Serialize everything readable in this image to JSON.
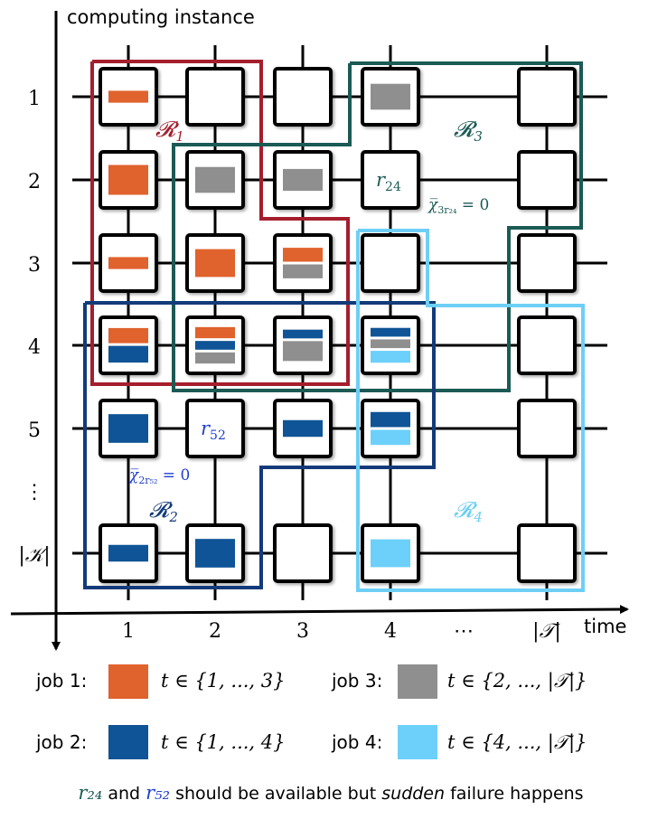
{
  "axes": {
    "y_label": "computing instance",
    "x_label": "time",
    "row_labels": [
      "1",
      "2",
      "3",
      "4",
      "5",
      "⋮",
      "|𝒦|"
    ],
    "col_labels": [
      "1",
      "2",
      "3",
      "4",
      "⋯",
      "|𝒯|"
    ]
  },
  "regions": [
    {
      "label": "𝓡",
      "sub": "1",
      "color": "#a51e2d"
    },
    {
      "label": "𝓡",
      "sub": "2",
      "color": "#133b7a"
    },
    {
      "label": "𝓡",
      "sub": "3",
      "color": "#1b5a55"
    },
    {
      "label": "𝓡",
      "sub": "4",
      "color": "#6ecff6"
    }
  ],
  "annotations": {
    "r24": {
      "main": "r",
      "sub": "24",
      "color": "#1b5a55"
    },
    "r52": {
      "main": "r",
      "sub": "52",
      "color": "#1f3fd0"
    },
    "chi3": {
      "text": "χ̅",
      "sub": "3r₂₄",
      "eq": " = 0",
      "color": "#1b5a55"
    },
    "chi2": {
      "text": "χ̅",
      "sub": "2r₅₂",
      "eq": " = 0",
      "color": "#1f3fd0"
    }
  },
  "job_colors": {
    "job1": "#e0622d",
    "job2": "#0f5496",
    "job3": "#8f8f8f",
    "job4": "#6dd0fa"
  },
  "legend": [
    {
      "label": "job 1:",
      "color": "#e0622d",
      "range": "t ∈ {1, ..., 3}"
    },
    {
      "label": "job 3:",
      "color": "#8f8f8f",
      "range": "t ∈ {2, ..., |𝒯|}"
    },
    {
      "label": "job 2:",
      "color": "#0f5496",
      "range": "t ∈ {1, ..., 4}"
    },
    {
      "label": "job 4:",
      "color": "#6dd0fa",
      "range": "t ∈ {4, ..., |𝒯|}"
    }
  ],
  "caption": {
    "r24": "r₂₄",
    "mid": " and ",
    "r52": "r₅₂",
    "before_italic": " should be available but ",
    "italic": "sudden",
    "after_italic": " failure happens"
  },
  "cells": [
    {
      "row": 0,
      "col": 0,
      "bars": [
        {
          "job": "job1",
          "h": 0.3
        }
      ]
    },
    {
      "row": 0,
      "col": 1,
      "bars": []
    },
    {
      "row": 0,
      "col": 2,
      "bars": []
    },
    {
      "row": 0,
      "col": 3,
      "bars": [
        {
          "job": "job3",
          "h": 0.65
        }
      ]
    },
    {
      "row": 0,
      "col": 5,
      "bars": []
    },
    {
      "row": 1,
      "col": 0,
      "bars": [
        {
          "job": "job1",
          "h": 0.75
        }
      ]
    },
    {
      "row": 1,
      "col": 1,
      "bars": [
        {
          "job": "job3",
          "h": 0.65
        }
      ]
    },
    {
      "row": 1,
      "col": 2,
      "bars": [
        {
          "job": "job3",
          "h": 0.55
        }
      ]
    },
    {
      "row": 1,
      "col": 3,
      "failed": "r24"
    },
    {
      "row": 1,
      "col": 5,
      "bars": []
    },
    {
      "row": 2,
      "col": 0,
      "bars": [
        {
          "job": "job1",
          "h": 0.3
        }
      ]
    },
    {
      "row": 2,
      "col": 1,
      "bars": [
        {
          "job": "job1",
          "h": 0.7
        }
      ]
    },
    {
      "row": 2,
      "col": 2,
      "bars": [
        {
          "job": "job1",
          "h": 0.35
        },
        {
          "job": "job3",
          "h": 0.35
        }
      ]
    },
    {
      "row": 2,
      "col": 3,
      "bars": []
    },
    {
      "row": 2,
      "col": 5,
      "bars": []
    },
    {
      "row": 3,
      "col": 0,
      "bars": [
        {
          "job": "job1",
          "h": 0.38
        },
        {
          "job": "job2",
          "h": 0.42
        }
      ]
    },
    {
      "row": 3,
      "col": 1,
      "bars": [
        {
          "job": "job1",
          "h": 0.28
        },
        {
          "job": "job2",
          "h": 0.22
        },
        {
          "job": "job3",
          "h": 0.28
        }
      ]
    },
    {
      "row": 3,
      "col": 2,
      "bars": [
        {
          "job": "job2",
          "h": 0.22
        },
        {
          "job": "job3",
          "h": 0.5
        }
      ]
    },
    {
      "row": 3,
      "col": 3,
      "bars": [
        {
          "job": "job2",
          "h": 0.22
        },
        {
          "job": "job3",
          "h": 0.22
        },
        {
          "job": "job4",
          "h": 0.3
        }
      ]
    },
    {
      "row": 3,
      "col": 5,
      "bars": []
    },
    {
      "row": 4,
      "col": 0,
      "bars": [
        {
          "job": "job2",
          "h": 0.72
        }
      ]
    },
    {
      "row": 4,
      "col": 1,
      "failed": "r52"
    },
    {
      "row": 4,
      "col": 2,
      "bars": [
        {
          "job": "job2",
          "h": 0.42
        }
      ]
    },
    {
      "row": 4,
      "col": 3,
      "bars": [
        {
          "job": "job2",
          "h": 0.38
        },
        {
          "job": "job4",
          "h": 0.38
        }
      ]
    },
    {
      "row": 4,
      "col": 5,
      "bars": []
    },
    {
      "row": 6,
      "col": 0,
      "bars": [
        {
          "job": "job2",
          "h": 0.42
        }
      ]
    },
    {
      "row": 6,
      "col": 1,
      "bars": [
        {
          "job": "job2",
          "h": 0.72
        }
      ]
    },
    {
      "row": 6,
      "col": 2,
      "bars": []
    },
    {
      "row": 6,
      "col": 3,
      "bars": [
        {
          "job": "job4",
          "h": 0.7
        }
      ]
    },
    {
      "row": 6,
      "col": 5,
      "bars": []
    }
  ]
}
